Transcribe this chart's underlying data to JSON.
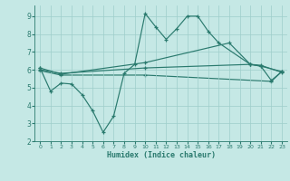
{
  "series1_x": [
    0,
    1,
    2,
    3,
    4,
    5,
    6,
    7,
    8,
    9,
    10,
    11,
    12,
    13,
    14,
    15,
    16,
    17,
    20,
    21,
    22,
    23
  ],
  "series1_y": [
    6.1,
    4.8,
    5.25,
    5.2,
    4.6,
    3.7,
    2.5,
    3.4,
    5.8,
    6.3,
    9.15,
    8.4,
    7.7,
    8.3,
    9.0,
    9.0,
    8.15,
    7.5,
    6.3,
    6.2,
    5.4,
    5.9
  ],
  "series2_x": [
    0,
    2,
    10,
    18,
    20,
    21,
    23
  ],
  "series2_y": [
    6.1,
    5.75,
    6.4,
    7.5,
    6.3,
    6.2,
    5.9
  ],
  "series3_x": [
    0,
    2,
    10,
    20,
    21,
    23
  ],
  "series3_y": [
    6.0,
    5.8,
    6.1,
    6.3,
    6.25,
    5.85
  ],
  "series4_x": [
    0,
    2,
    10,
    22,
    23
  ],
  "series4_y": [
    5.95,
    5.7,
    5.7,
    5.35,
    5.9
  ],
  "color": "#2a7a6e",
  "bg_color": "#c5e8e5",
  "grid_color": "#9ececa",
  "xlabel": "Humidex (Indice chaleur)",
  "ylim": [
    2,
    9.6
  ],
  "xlim": [
    -0.5,
    23.5
  ],
  "yticks": [
    2,
    3,
    4,
    5,
    6,
    7,
    8,
    9
  ],
  "xticks": [
    0,
    1,
    2,
    3,
    4,
    5,
    6,
    7,
    8,
    9,
    10,
    11,
    12,
    13,
    14,
    15,
    16,
    17,
    18,
    19,
    20,
    21,
    22,
    23
  ]
}
